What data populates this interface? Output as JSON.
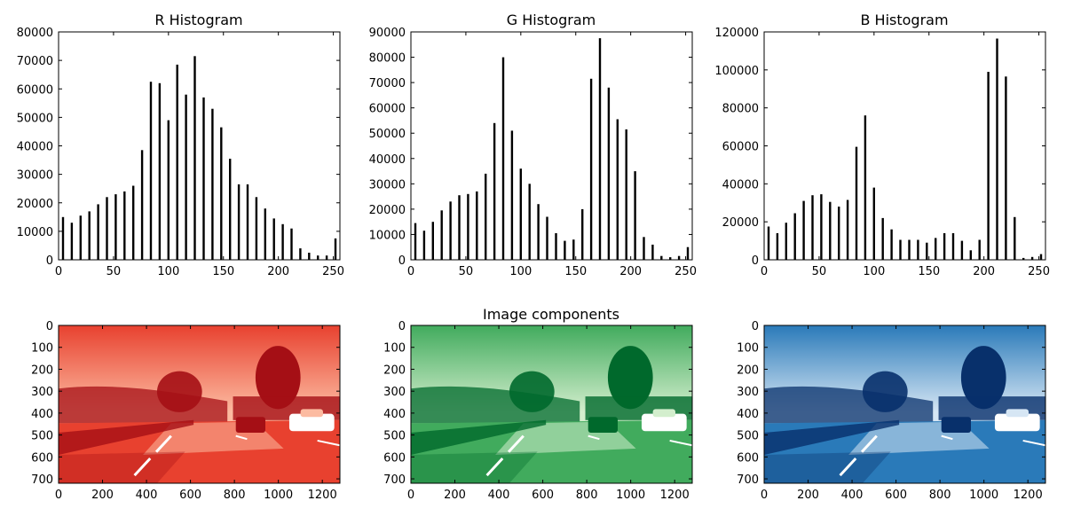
{
  "figure": {
    "center_title": "Image components"
  },
  "colors": {
    "bar": "#000000",
    "red_dark": "#a50f15",
    "red_mid": "#e8412f",
    "red_light": "#fcbba1",
    "green_dark": "#00692c",
    "green_mid": "#41ab5d",
    "green_light": "#d3eecd",
    "blue_dark": "#08306b",
    "blue_mid": "#2a7ab9",
    "blue_light": "#d6e6f4"
  },
  "chart_data": [
    {
      "type": "bar",
      "id": "r",
      "title": "R Histogram",
      "xlabel": "",
      "ylabel": "",
      "xlim": [
        0,
        256
      ],
      "ylim": [
        0,
        80000
      ],
      "x_ticks": [
        "0",
        "50",
        "100",
        "150",
        "200",
        "250"
      ],
      "x_tick_values": [
        0,
        50,
        100,
        150,
        200,
        250
      ],
      "y_ticks": [
        "0",
        "10000",
        "20000",
        "30000",
        "40000",
        "50000",
        "60000",
        "70000",
        "80000"
      ],
      "y_tick_values": [
        0,
        10000,
        20000,
        30000,
        40000,
        50000,
        60000,
        70000,
        80000
      ],
      "x": [
        4,
        12,
        20,
        28,
        36,
        44,
        52,
        60,
        68,
        76,
        84,
        92,
        100,
        108,
        116,
        124,
        132,
        140,
        148,
        156,
        164,
        172,
        180,
        188,
        196,
        204,
        212,
        220,
        228,
        236,
        244,
        252
      ],
      "values": [
        15000,
        13000,
        15500,
        17000,
        19500,
        22000,
        23000,
        24000,
        26000,
        38500,
        62500,
        62000,
        49000,
        68500,
        58000,
        71500,
        57000,
        53000,
        46500,
        35500,
        26500,
        26500,
        22000,
        18000,
        14500,
        12500,
        11000,
        4000,
        2500,
        1500,
        1500,
        7500
      ]
    },
    {
      "type": "bar",
      "id": "g",
      "title": "G Histogram",
      "xlabel": "",
      "ylabel": "",
      "xlim": [
        0,
        256
      ],
      "ylim": [
        0,
        90000
      ],
      "x_ticks": [
        "0",
        "50",
        "100",
        "150",
        "200",
        "250"
      ],
      "x_tick_values": [
        0,
        50,
        100,
        150,
        200,
        250
      ],
      "y_ticks": [
        "0",
        "10000",
        "20000",
        "30000",
        "40000",
        "50000",
        "60000",
        "70000",
        "80000",
        "90000"
      ],
      "y_tick_values": [
        0,
        10000,
        20000,
        30000,
        40000,
        50000,
        60000,
        70000,
        80000,
        90000
      ],
      "x": [
        4,
        12,
        20,
        28,
        36,
        44,
        52,
        60,
        68,
        76,
        84,
        92,
        100,
        108,
        116,
        124,
        132,
        140,
        148,
        156,
        164,
        172,
        180,
        188,
        196,
        204,
        212,
        220,
        228,
        236,
        244,
        252
      ],
      "values": [
        14500,
        11500,
        15000,
        19500,
        23000,
        25500,
        26000,
        27000,
        34000,
        54000,
        80000,
        51000,
        36000,
        30000,
        22000,
        17000,
        10500,
        7500,
        8000,
        20000,
        71500,
        87500,
        68000,
        55500,
        51500,
        35000,
        9000,
        6000,
        1500,
        1000,
        1500,
        5000
      ]
    },
    {
      "type": "bar",
      "id": "b",
      "title": "B Histogram",
      "xlabel": "",
      "ylabel": "",
      "xlim": [
        0,
        256
      ],
      "ylim": [
        0,
        120000
      ],
      "x_ticks": [
        "0",
        "50",
        "100",
        "150",
        "200",
        "250"
      ],
      "x_tick_values": [
        0,
        50,
        100,
        150,
        200,
        250
      ],
      "y_ticks": [
        "0",
        "20000",
        "40000",
        "60000",
        "80000",
        "100000",
        "120000"
      ],
      "y_tick_values": [
        0,
        20000,
        40000,
        60000,
        80000,
        100000,
        120000
      ],
      "x": [
        4,
        12,
        20,
        28,
        36,
        44,
        52,
        60,
        68,
        76,
        84,
        92,
        100,
        108,
        116,
        124,
        132,
        140,
        148,
        156,
        164,
        172,
        180,
        188,
        196,
        204,
        212,
        220,
        228,
        236,
        244,
        252
      ],
      "values": [
        17500,
        14000,
        19500,
        24500,
        31000,
        34000,
        34500,
        30500,
        28000,
        31500,
        59500,
        76000,
        38000,
        22000,
        16000,
        10500,
        10500,
        10500,
        9000,
        11500,
        14000,
        14000,
        10000,
        5000,
        10500,
        99000,
        116500,
        96500,
        22500,
        1000,
        1500,
        3000
      ]
    },
    {
      "type": "heatmap",
      "id": "r_img",
      "title": "",
      "xlim": [
        0,
        1280
      ],
      "ylim": [
        720,
        0
      ],
      "x_ticks": [
        "0",
        "200",
        "400",
        "600",
        "800",
        "1000",
        "1200"
      ],
      "x_tick_values": [
        0,
        200,
        400,
        600,
        800,
        1000,
        1200
      ],
      "y_ticks": [
        "0",
        "100",
        "200",
        "300",
        "400",
        "500",
        "600",
        "700"
      ],
      "y_tick_values": [
        0,
        100,
        200,
        300,
        400,
        500,
        600,
        700
      ],
      "colormap": "Reds"
    },
    {
      "type": "heatmap",
      "id": "g_img",
      "title": "Image components",
      "xlim": [
        0,
        1280
      ],
      "ylim": [
        720,
        0
      ],
      "x_ticks": [
        "0",
        "200",
        "400",
        "600",
        "800",
        "1000",
        "1200"
      ],
      "x_tick_values": [
        0,
        200,
        400,
        600,
        800,
        1000,
        1200
      ],
      "y_ticks": [
        "0",
        "100",
        "200",
        "300",
        "400",
        "500",
        "600",
        "700"
      ],
      "y_tick_values": [
        0,
        100,
        200,
        300,
        400,
        500,
        600,
        700
      ],
      "colormap": "Greens"
    },
    {
      "type": "heatmap",
      "id": "b_img",
      "title": "",
      "xlim": [
        0,
        1280
      ],
      "ylim": [
        720,
        0
      ],
      "x_ticks": [
        "0",
        "200",
        "400",
        "600",
        "800",
        "1000",
        "1200"
      ],
      "x_tick_values": [
        0,
        200,
        400,
        600,
        800,
        1000,
        1200
      ],
      "y_ticks": [
        "0",
        "100",
        "200",
        "300",
        "400",
        "500",
        "600",
        "700"
      ],
      "y_tick_values": [
        0,
        100,
        200,
        300,
        400,
        500,
        600,
        700
      ],
      "colormap": "Blues"
    }
  ]
}
